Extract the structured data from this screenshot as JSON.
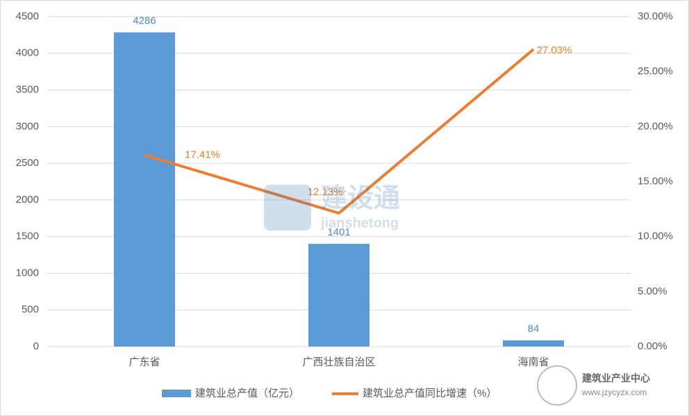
{
  "chart_data": {
    "type": "bar",
    "categories": [
      "广东省",
      "广西壮族自治区",
      "海南省"
    ],
    "series": [
      {
        "name": "建筑业总产值（亿元）",
        "type": "bar",
        "color": "#5b9bd5",
        "values": [
          4286,
          1401,
          84
        ]
      },
      {
        "name": "建筑业总产值同比增速（%）",
        "type": "line",
        "axis": "y2",
        "color": "#ed7d31",
        "values": [
          17.41,
          12.13,
          27.03
        ],
        "value_labels": [
          "17.41%",
          "12.13%",
          "27.03%"
        ]
      }
    ],
    "ylim": [
      0,
      4500
    ],
    "yticks": [
      0,
      500,
      1000,
      1500,
      2000,
      2500,
      3000,
      3500,
      4000,
      4500
    ],
    "y2lim": [
      0,
      30
    ],
    "y2ticks": [
      {
        "value": 0,
        "label": "0.00%"
      },
      {
        "value": 5,
        "label": "5.00%"
      },
      {
        "value": 10,
        "label": "10.00%"
      },
      {
        "value": 15,
        "label": "15.00%"
      },
      {
        "value": 20,
        "label": "20.00%"
      },
      {
        "value": 25,
        "label": "25.00%"
      },
      {
        "value": 30,
        "label": "30.00%"
      }
    ],
    "grid": true,
    "legend": "bottom",
    "watermarks": [
      "建设通",
      "jianshetong",
      "建筑业产业中心",
      "www.jzycyzx.com"
    ]
  }
}
